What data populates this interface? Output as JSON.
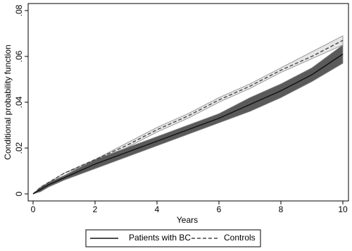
{
  "chart_data": {
    "type": "line",
    "x_label": "Years",
    "y_label": "Conditional probability function",
    "x": [
      0,
      0.25,
      0.5,
      1,
      2,
      3,
      4,
      5,
      6,
      7,
      8,
      9,
      10
    ],
    "series": [
      {
        "name": "Patients with BC",
        "color": "#111111",
        "band_color": "#5a5a5a",
        "dash": false,
        "values": [
          0,
          0.002,
          0.004,
          0.007,
          0.013,
          0.018,
          0.023,
          0.028,
          0.033,
          0.039,
          0.045,
          0.052,
          0.061
        ],
        "lower": [
          0,
          0.001,
          0.003,
          0.006,
          0.011,
          0.016,
          0.021,
          0.026,
          0.031,
          0.036,
          0.042,
          0.049,
          0.057
        ],
        "upper": [
          0,
          0.003,
          0.005,
          0.008,
          0.015,
          0.02,
          0.025,
          0.03,
          0.035,
          0.042,
          0.048,
          0.055,
          0.065
        ]
      },
      {
        "name": "Controls",
        "color": "#444444",
        "band_color": "#e6e6e6",
        "dash": true,
        "values": [
          0,
          0.003,
          0.005,
          0.009,
          0.015,
          0.021,
          0.028,
          0.034,
          0.041,
          0.047,
          0.054,
          0.06,
          0.067
        ],
        "lower": [
          0,
          0.003,
          0.005,
          0.009,
          0.014,
          0.02,
          0.027,
          0.033,
          0.04,
          0.046,
          0.053,
          0.059,
          0.065
        ],
        "upper": [
          0,
          0.003,
          0.005,
          0.009,
          0.015,
          0.022,
          0.029,
          0.035,
          0.042,
          0.048,
          0.055,
          0.062,
          0.069
        ]
      }
    ],
    "xlim": [
      0,
      10
    ],
    "xticks": [
      0,
      2,
      4,
      6,
      8,
      10
    ],
    "ylim": [
      0,
      0.08
    ],
    "yticks": [
      0,
      {
        "value": 0.02,
        "label": ".02"
      },
      {
        "value": 0.04,
        "label": ".04"
      },
      {
        "value": 0.06,
        "label": ".06"
      },
      {
        "value": 0.08,
        "label": ".08"
      }
    ],
    "grid": false,
    "legend": "bottom"
  }
}
